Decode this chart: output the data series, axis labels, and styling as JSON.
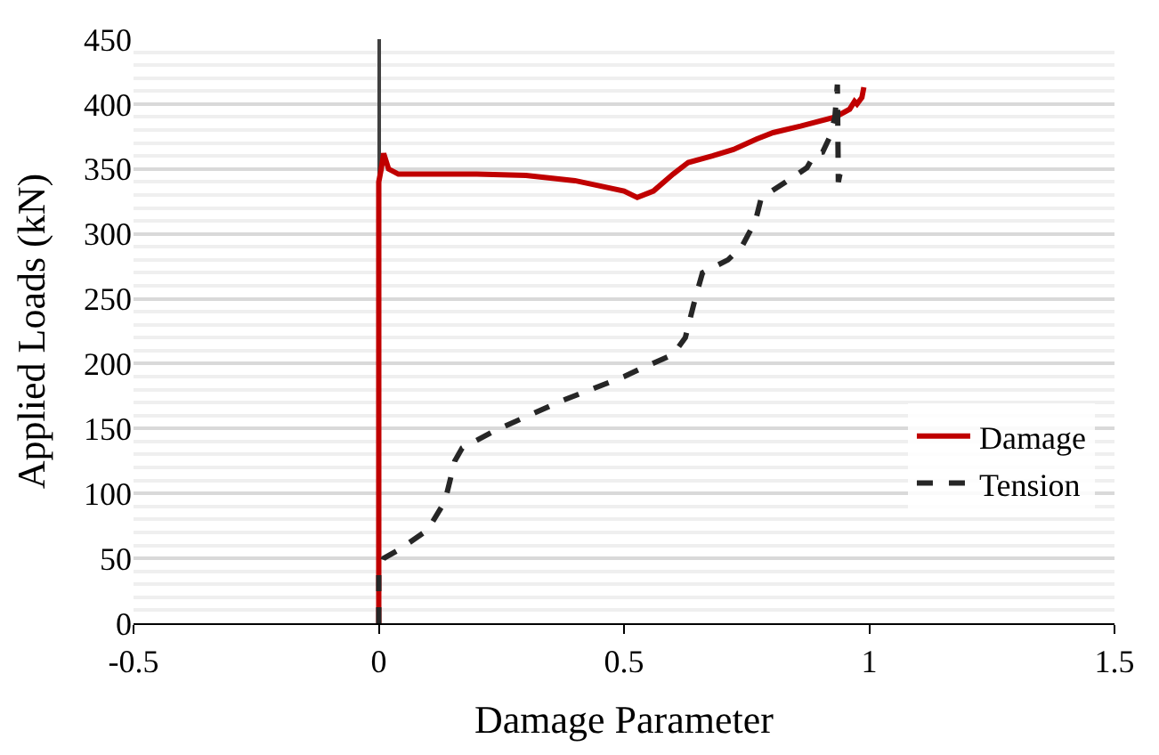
{
  "chart_data": {
    "type": "line",
    "xlabel": "Damage Parameter",
    "ylabel": "Applied Loads (kN)",
    "xlim": [
      -0.5,
      1.5
    ],
    "xticks": [
      -0.5,
      0,
      0.5,
      1,
      1.5
    ],
    "ylim": [
      0,
      450
    ],
    "yticks": [
      0,
      {
        "value": 10,
        "label": null
      },
      {
        "value": 20,
        "label": null
      },
      {
        "value": 30,
        "label": null
      },
      {
        "value": 40,
        "label": null
      },
      50,
      {
        "value": 60,
        "label": null
      },
      {
        "value": 70,
        "label": null
      },
      {
        "value": 80,
        "label": null
      },
      {
        "value": 90,
        "label": null
      },
      100,
      {
        "value": 110,
        "label": null
      },
      {
        "value": 120,
        "label": null
      },
      {
        "value": 130,
        "label": null
      },
      {
        "value": 140,
        "label": null
      },
      150,
      {
        "value": 160,
        "label": null
      },
      {
        "value": 170,
        "label": null
      },
      {
        "value": 180,
        "label": null
      },
      {
        "value": 190,
        "label": null
      },
      200,
      {
        "value": 210,
        "label": null
      },
      {
        "value": 220,
        "label": null
      },
      {
        "value": 230,
        "label": null
      },
      {
        "value": 240,
        "label": null
      },
      250,
      {
        "value": 260,
        "label": null
      },
      {
        "value": 270,
        "label": null
      },
      {
        "value": 280,
        "label": null
      },
      {
        "value": 290,
        "label": null
      },
      300,
      {
        "value": 310,
        "label": null
      },
      {
        "value": 320,
        "label": null
      },
      {
        "value": 330,
        "label": null
      },
      {
        "value": 340,
        "label": null
      },
      350,
      {
        "value": 360,
        "label": null
      },
      {
        "value": 370,
        "label": null
      },
      {
        "value": 380,
        "label": null
      },
      {
        "value": 390,
        "label": null
      },
      400,
      {
        "value": 410,
        "label": null
      },
      {
        "value": 420,
        "label": null
      },
      {
        "value": 430,
        "label": null
      },
      {
        "value": 440,
        "label": null
      },
      450
    ],
    "grid": "y",
    "legend": "right",
    "series": [
      {
        "name": "Damage",
        "color": "#c00000",
        "line_style": "solid",
        "x": [
          0,
          0,
          0.005,
          0.01,
          0.02,
          0.04,
          0.2,
          0.3,
          0.4,
          0.5,
          0.527,
          0.56,
          0.6,
          0.631,
          0.68,
          0.723,
          0.77,
          0.804,
          0.86,
          0.931,
          0.96,
          0.97,
          0.975,
          0.985,
          0.989
        ],
        "values": [
          0,
          340,
          350,
          362,
          350,
          346,
          346,
          345,
          341,
          333,
          328,
          333,
          346,
          355,
          360,
          365,
          373,
          378,
          383,
          390,
          396,
          402,
          400,
          405,
          413
        ]
      },
      {
        "name": "Tension",
        "color": "#262626",
        "line_style": "dashed",
        "x": [
          0,
          0,
          0,
          0.01,
          0.043,
          0.1,
          0.135,
          0.155,
          0.17,
          0.24,
          0.377,
          0.5,
          0.539,
          0.6,
          0.625,
          0.645,
          0.66,
          0.712,
          0.74,
          0.768,
          0.78,
          0.83,
          0.873,
          0.89,
          0.905,
          0.92,
          0.93,
          0.935,
          0.937,
          0.942
        ],
        "values": [
          0,
          20,
          39,
          50,
          57,
          72,
          94,
          125,
          135,
          149,
          172,
          190,
          197,
          207,
          220,
          250,
          270,
          280,
          290,
          310,
          328,
          340,
          351,
          362,
          363,
          375,
          390,
          415,
          340,
          349
        ]
      }
    ]
  }
}
